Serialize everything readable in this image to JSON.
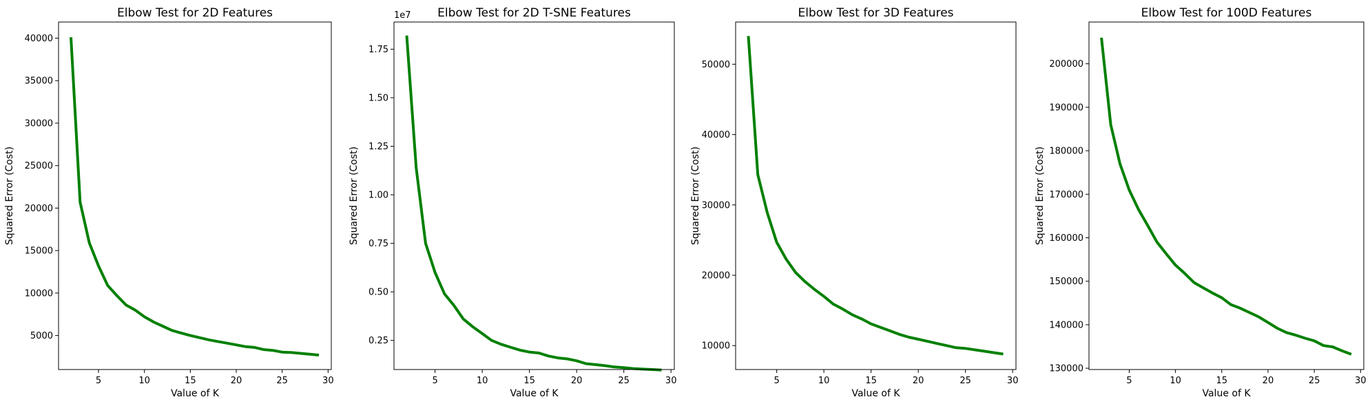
{
  "chart_data": [
    {
      "type": "line",
      "title": "Elbow Test for 2D Features",
      "xlabel": "Value of K",
      "ylabel": "Squared Error (Cost)",
      "xlim": [
        0.65,
        30.35
      ],
      "ylim": [
        1000,
        41900
      ],
      "xticks": [
        5,
        10,
        15,
        20,
        25,
        30
      ],
      "yticks": [
        5000,
        10000,
        15000,
        20000,
        25000,
        30000,
        35000,
        40000
      ],
      "ytick_labels": [
        "5000",
        "10000",
        "15000",
        "20000",
        "25000",
        "30000",
        "35000",
        "40000"
      ],
      "y_offset_label": "",
      "color": "#008000",
      "x": [
        2,
        3,
        4,
        5,
        6,
        7,
        8,
        9,
        10,
        11,
        12,
        13,
        14,
        15,
        16,
        17,
        18,
        19,
        20,
        21,
        22,
        23,
        24,
        25,
        26,
        27,
        28,
        29
      ],
      "y": [
        40100,
        20700,
        15900,
        13200,
        10900,
        9700,
        8600,
        8000,
        7200,
        6600,
        6100,
        5600,
        5300,
        5000,
        4750,
        4500,
        4300,
        4100,
        3900,
        3700,
        3600,
        3350,
        3250,
        3050,
        3000,
        2900,
        2800,
        2700
      ]
    },
    {
      "type": "line",
      "title": "Elbow Test for 2D T-SNE Features",
      "xlabel": "Value of K",
      "ylabel": "Squared Error (Cost)",
      "xlim": [
        0.65,
        30.35
      ],
      "ylim": [
        0.1,
        1.89
      ],
      "xticks": [
        5,
        10,
        15,
        20,
        25,
        30
      ],
      "yticks": [
        0.25,
        0.5,
        0.75,
        1.0,
        1.25,
        1.5,
        1.75
      ],
      "ytick_labels": [
        "0.25",
        "0.50",
        "0.75",
        "1.00",
        "1.25",
        "1.50",
        "1.75"
      ],
      "y_offset_label": "1e7",
      "color": "#008000",
      "x": [
        2,
        3,
        4,
        5,
        6,
        7,
        8,
        9,
        10,
        11,
        12,
        13,
        14,
        15,
        16,
        17,
        18,
        19,
        20,
        21,
        22,
        23,
        24,
        25,
        26,
        27,
        28,
        29
      ],
      "y": [
        1.82,
        1.14,
        0.75,
        0.6,
        0.49,
        0.43,
        0.36,
        0.32,
        0.285,
        0.25,
        0.23,
        0.215,
        0.2,
        0.19,
        0.185,
        0.17,
        0.16,
        0.155,
        0.145,
        0.13,
        0.125,
        0.12,
        0.113,
        0.11,
        0.105,
        0.102,
        0.1,
        0.097
      ]
    },
    {
      "type": "line",
      "title": "Elbow Test for 3D Features",
      "xlabel": "Value of K",
      "ylabel": "Squared Error (Cost)",
      "xlim": [
        0.65,
        30.35
      ],
      "ylim": [
        6600,
        56000
      ],
      "xticks": [
        5,
        10,
        15,
        20,
        25,
        30
      ],
      "yticks": [
        10000,
        20000,
        30000,
        40000,
        50000
      ],
      "ytick_labels": [
        "10000",
        "20000",
        "30000",
        "40000",
        "50000"
      ],
      "y_offset_label": "",
      "color": "#008000",
      "x": [
        2,
        3,
        4,
        5,
        6,
        7,
        8,
        9,
        10,
        11,
        12,
        13,
        14,
        15,
        16,
        17,
        18,
        19,
        20,
        21,
        22,
        23,
        24,
        25,
        26,
        27,
        28,
        29
      ],
      "y": [
        54000,
        34300,
        28900,
        24700,
        22300,
        20400,
        19100,
        18000,
        17000,
        15900,
        15200,
        14400,
        13800,
        13100,
        12600,
        12100,
        11600,
        11200,
        10900,
        10600,
        10300,
        10000,
        9700,
        9600,
        9400,
        9200,
        9000,
        8800
      ]
    },
    {
      "type": "line",
      "title": "Elbow Test for 100D Features",
      "xlabel": "Value of K",
      "ylabel": "Squared Error (Cost)",
      "xlim": [
        0.65,
        30.35
      ],
      "ylim": [
        129700,
        209600
      ],
      "xticks": [
        5,
        10,
        15,
        20,
        25,
        30
      ],
      "yticks": [
        130000,
        140000,
        150000,
        160000,
        170000,
        180000,
        190000,
        200000
      ],
      "ytick_labels": [
        "130000",
        "140000",
        "150000",
        "160000",
        "170000",
        "180000",
        "190000",
        "200000"
      ],
      "y_offset_label": "",
      "color": "#008000",
      "x": [
        2,
        3,
        4,
        5,
        6,
        7,
        8,
        9,
        10,
        11,
        12,
        13,
        14,
        15,
        16,
        17,
        18,
        19,
        20,
        21,
        22,
        23,
        24,
        25,
        26,
        27,
        28,
        29
      ],
      "y": [
        206000,
        186000,
        177000,
        171000,
        166500,
        162800,
        159000,
        156300,
        153700,
        151800,
        149700,
        148500,
        147300,
        146200,
        144600,
        143800,
        142800,
        141800,
        140500,
        139200,
        138200,
        137600,
        136900,
        136300,
        135200,
        134900,
        134000,
        133200
      ]
    }
  ]
}
